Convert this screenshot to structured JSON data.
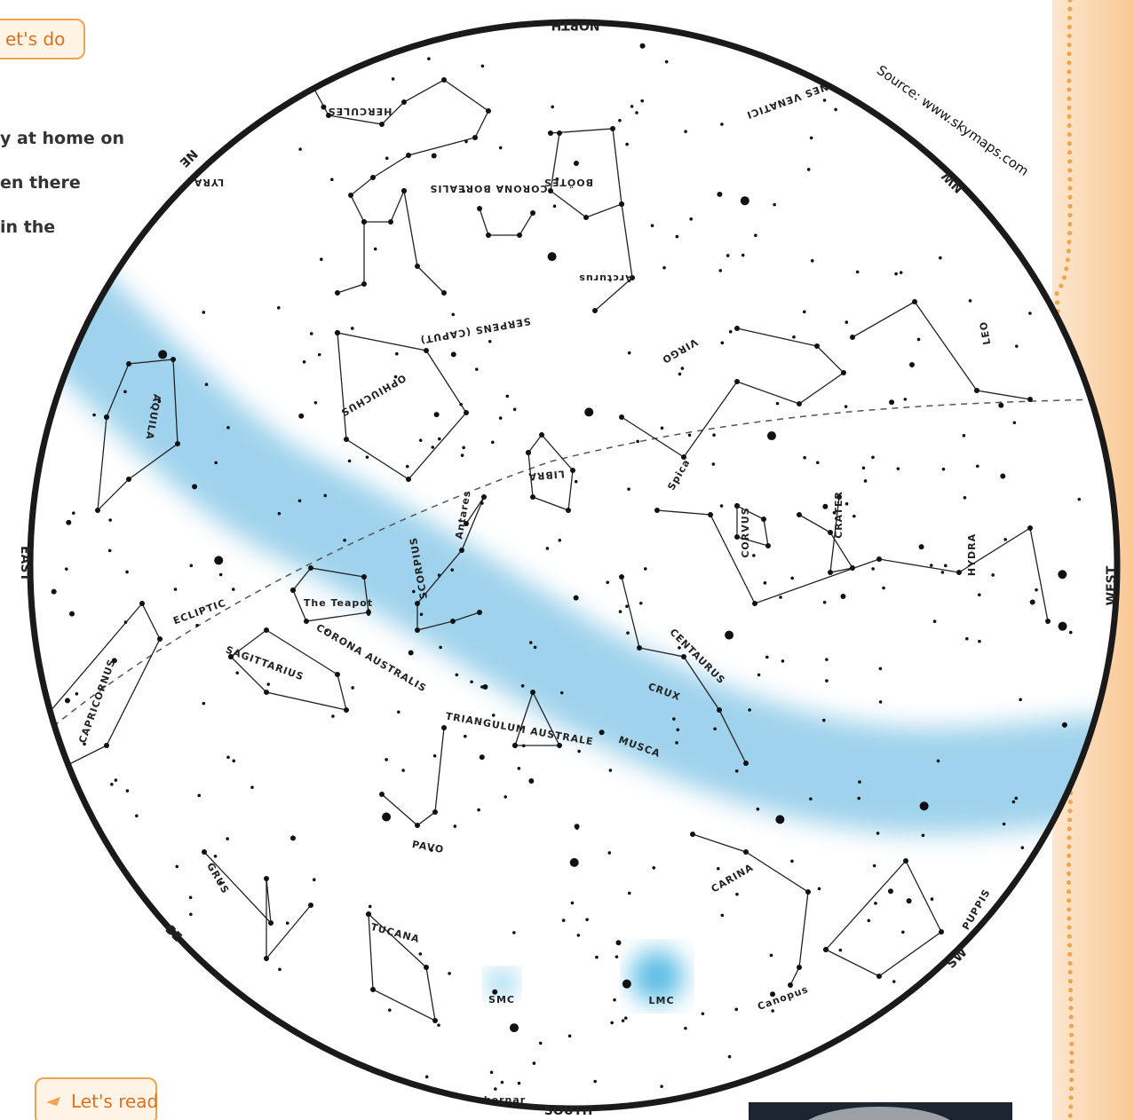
{
  "header": {
    "tab": "et's do",
    "lines": [
      "y at home on",
      "en there",
      "in the"
    ]
  },
  "map": {
    "source": "Source: www.skymaps.com",
    "directions": [
      "NORTH",
      "SOUTH",
      "EAST",
      "WEST",
      "NE",
      "NW",
      "SE",
      "SW"
    ],
    "labels": [
      "HERCULES",
      "LYRA",
      "CORONA BOREALIS",
      "BOÖTES",
      "CANES VENATICI",
      "VIRGO",
      "LEO",
      "SERPENS (CAPUT)",
      "OPHIUCHUS",
      "AQUILA",
      "LIBRA",
      "CORVUS",
      "CRATER",
      "HYDRA",
      "SCORPIUS",
      "ECLIPTIC",
      "The Teapot",
      "SAGITTARIUS",
      "CORONA AUSTRALIS",
      "CENTAURUS",
      "CRUX",
      "CAPRICORNUS",
      "TRIANGULUM AUSTRALE",
      "MUSCA",
      "PAVO",
      "CARINA",
      "PUPPIS",
      "GRUS",
      "TUCANA",
      "Arcturus",
      "Spica",
      "Antares",
      "Achernar",
      "Canopus",
      "LMC",
      "SMC"
    ]
  },
  "footer": {
    "tab": "Let's read"
  }
}
